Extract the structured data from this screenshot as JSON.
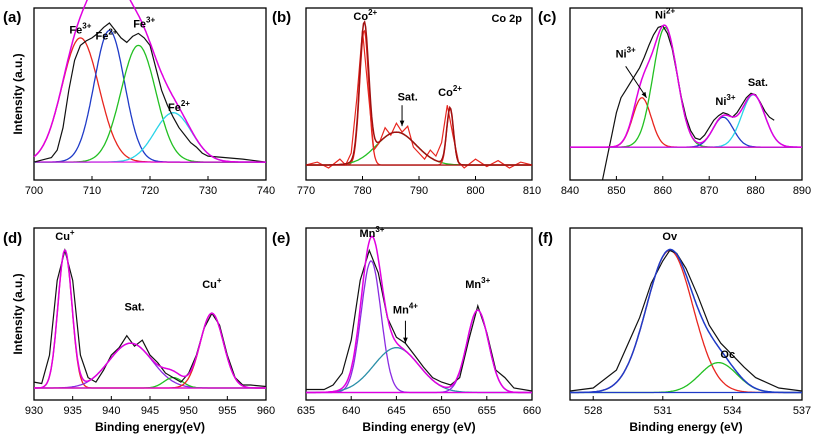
{
  "chart_data": [
    {
      "panel": "(a)",
      "type": "line",
      "title": "",
      "xlabel": "",
      "ylabel": "Intensity (a.u.)",
      "xlim": [
        700,
        740
      ],
      "ylim": [
        0,
        1.15
      ],
      "xticks": [
        "700",
        "710",
        "720",
        "730",
        "740"
      ],
      "baseline": 0.12,
      "raw": [
        [
          700,
          0.12
        ],
        [
          702,
          0.14
        ],
        [
          703,
          0.15
        ],
        [
          704,
          0.2
        ],
        [
          705,
          0.35
        ],
        [
          706,
          0.6
        ],
        [
          707,
          0.8
        ],
        [
          708,
          0.9
        ],
        [
          709,
          0.93
        ],
        [
          710,
          0.95
        ],
        [
          711,
          0.98
        ],
        [
          712,
          1.02
        ],
        [
          713,
          1.05
        ],
        [
          714,
          1.0
        ],
        [
          715,
          0.95
        ],
        [
          716,
          0.92
        ],
        [
          717,
          0.96
        ],
        [
          718,
          0.98
        ],
        [
          719,
          0.95
        ],
        [
          720,
          0.9
        ],
        [
          721,
          0.75
        ],
        [
          722,
          0.6
        ],
        [
          723,
          0.5
        ],
        [
          724,
          0.42
        ],
        [
          725,
          0.35
        ],
        [
          726,
          0.3
        ],
        [
          727,
          0.25
        ],
        [
          728,
          0.22
        ],
        [
          729,
          0.18
        ],
        [
          730,
          0.16
        ],
        [
          733,
          0.15
        ],
        [
          736,
          0.14
        ],
        [
          740,
          0.12
        ]
      ],
      "components": [
        {
          "name": "Fe3+",
          "color": "#e8261f",
          "center": 708,
          "amp": 0.83,
          "sigma": 3.2
        },
        {
          "name": "Fe2+",
          "color": "#1f3bc8",
          "center": 713,
          "amp": 0.88,
          "sigma": 2.6
        },
        {
          "name": "Fe3+",
          "color": "#22c022",
          "center": 718,
          "amp": 0.78,
          "sigma": 3.0
        },
        {
          "name": "Fe2+",
          "color": "#2ad4e8",
          "center": 724,
          "amp": 0.33,
          "sigma": 3.2
        }
      ],
      "envelope_color": "#e000e0",
      "annotations": [
        {
          "text": "Fe",
          "sup": "3+",
          "x": 708,
          "y": 0.98
        },
        {
          "text": "Fe",
          "sup": "2+",
          "x": 712.5,
          "y": 0.94
        },
        {
          "text": "Fe",
          "sup": "3+",
          "x": 719,
          "y": 1.02
        },
        {
          "text": "Fe",
          "sup": "2+",
          "x": 725,
          "y": 0.46
        }
      ]
    },
    {
      "panel": "(b)",
      "type": "line",
      "title": "Co 2p",
      "xlabel": "",
      "ylabel": "",
      "xlim": [
        770,
        810
      ],
      "ylim": [
        0,
        1.15
      ],
      "xticks": [
        "770",
        "780",
        "790",
        "800",
        "810"
      ],
      "baseline": 0.1,
      "raw": [
        [
          770,
          0.1
        ],
        [
          772,
          0.12
        ],
        [
          774,
          0.08
        ],
        [
          776,
          0.14
        ],
        [
          777,
          0.1
        ],
        [
          778,
          0.18
        ],
        [
          779,
          0.55
        ],
        [
          780,
          1.0
        ],
        [
          781,
          0.6
        ],
        [
          782,
          0.2
        ],
        [
          783,
          0.25
        ],
        [
          784,
          0.35
        ],
        [
          785,
          0.3
        ],
        [
          786,
          0.38
        ],
        [
          787,
          0.32
        ],
        [
          788,
          0.36
        ],
        [
          789,
          0.22
        ],
        [
          790,
          0.18
        ],
        [
          791,
          0.14
        ],
        [
          792,
          0.2
        ],
        [
          793,
          0.16
        ],
        [
          794,
          0.25
        ],
        [
          795,
          0.5
        ],
        [
          796,
          0.3
        ],
        [
          797,
          0.12
        ],
        [
          798,
          0.08
        ],
        [
          800,
          0.14
        ],
        [
          802,
          0.09
        ],
        [
          804,
          0.13
        ],
        [
          806,
          0.08
        ],
        [
          808,
          0.12
        ],
        [
          810,
          0.1
        ]
      ],
      "components": [
        {
          "name": "Co2+",
          "color": "#e8261f",
          "center": 780.3,
          "amp": 0.9,
          "sigma": 0.8
        },
        {
          "name": "Sat.",
          "color": "#22c022",
          "center": 786,
          "amp": 0.22,
          "sigma": 3.5
        },
        {
          "name": "Co2+",
          "color": "#e8261f",
          "center": 795.5,
          "amp": 0.38,
          "sigma": 0.6
        }
      ],
      "envelope_color": "#a01010",
      "annotations": [
        {
          "text": "Co",
          "sup": "2+",
          "x": 780.5,
          "y": 1.07
        },
        {
          "text": "Sat.",
          "sup": "",
          "x": 788,
          "y": 0.53
        },
        {
          "text": "Co",
          "sup": "2+",
          "x": 795.5,
          "y": 0.56
        }
      ],
      "arrows": [
        {
          "from": [
            787,
            0.5
          ],
          "to": [
            787,
            0.36
          ]
        }
      ]
    },
    {
      "panel": "(c)",
      "type": "line",
      "title": "",
      "xlabel": "",
      "ylabel": "",
      "xlim": [
        840,
        890
      ],
      "ylim": [
        0,
        1.15
      ],
      "xticks": [
        "840",
        "850",
        "860",
        "870",
        "880",
        "890"
      ],
      "baseline": 0.22,
      "raw": [
        [
          847,
          0.0
        ],
        [
          848,
          0.15
        ],
        [
          849,
          0.3
        ],
        [
          850,
          0.45
        ],
        [
          851,
          0.55
        ],
        [
          852,
          0.6
        ],
        [
          853,
          0.65
        ],
        [
          854,
          0.7
        ],
        [
          855,
          0.75
        ],
        [
          856,
          0.82
        ],
        [
          857,
          0.9
        ],
        [
          858,
          0.97
        ],
        [
          859,
          1.02
        ],
        [
          860,
          1.03
        ],
        [
          861,
          0.98
        ],
        [
          862,
          0.88
        ],
        [
          863,
          0.72
        ],
        [
          864,
          0.55
        ],
        [
          865,
          0.42
        ],
        [
          866,
          0.33
        ],
        [
          867,
          0.28
        ],
        [
          868,
          0.27
        ],
        [
          869,
          0.3
        ],
        [
          870,
          0.35
        ],
        [
          871,
          0.4
        ],
        [
          872,
          0.43
        ],
        [
          873,
          0.45
        ],
        [
          874,
          0.44
        ],
        [
          875,
          0.42
        ],
        [
          876,
          0.45
        ],
        [
          877,
          0.5
        ],
        [
          878,
          0.55
        ],
        [
          879,
          0.58
        ],
        [
          880,
          0.57
        ],
        [
          881,
          0.52
        ],
        [
          882,
          0.46
        ],
        [
          883,
          0.42
        ],
        [
          884,
          0.4
        ]
      ],
      "components": [
        {
          "name": "Ni3+",
          "color": "#e8261f",
          "center": 855.5,
          "amp": 0.33,
          "sigma": 2.0
        },
        {
          "name": "Ni2+",
          "color": "#22c022",
          "center": 860.5,
          "amp": 0.8,
          "sigma": 2.6
        },
        {
          "name": "Ni3+",
          "color": "#1f3bc8",
          "center": 873,
          "amp": 0.2,
          "sigma": 2.2
        },
        {
          "name": "Sat.",
          "color": "#2ad4e8",
          "center": 879.5,
          "amp": 0.35,
          "sigma": 2.5
        }
      ],
      "envelope_color": "#e000e0",
      "annotations": [
        {
          "text": "Ni",
          "sup": "2+",
          "x": 860.5,
          "y": 1.08
        },
        {
          "text": "Ni",
          "sup": "3+",
          "x": 852,
          "y": 0.82
        },
        {
          "text": "Ni",
          "sup": "3+",
          "x": 873.5,
          "y": 0.5
        },
        {
          "text": "Sat.",
          "sup": "",
          "x": 880.5,
          "y": 0.63
        }
      ],
      "arrows": [
        {
          "from": [
            852,
            0.76
          ],
          "to": [
            856.5,
            0.55
          ]
        }
      ]
    },
    {
      "panel": "(d)",
      "type": "line",
      "title": "",
      "xlabel": "Binding energy(eV)",
      "ylabel": "Intensity (a.u.)",
      "xlim": [
        930,
        960
      ],
      "ylim": [
        0,
        1.15
      ],
      "xticks": [
        "930",
        "935",
        "940",
        "945",
        "950",
        "955",
        "960"
      ],
      "baseline": 0.08,
      "raw": [
        [
          930,
          0.12
        ],
        [
          931,
          0.11
        ],
        [
          932,
          0.3
        ],
        [
          933,
          0.8
        ],
        [
          934,
          1.0
        ],
        [
          935,
          0.8
        ],
        [
          936,
          0.3
        ],
        [
          937,
          0.15
        ],
        [
          938,
          0.12
        ],
        [
          939,
          0.2
        ],
        [
          940,
          0.3
        ],
        [
          941,
          0.35
        ],
        [
          942,
          0.43
        ],
        [
          943,
          0.36
        ],
        [
          944,
          0.4
        ],
        [
          945,
          0.3
        ],
        [
          946,
          0.25
        ],
        [
          947,
          0.18
        ],
        [
          948,
          0.15
        ],
        [
          949,
          0.12
        ],
        [
          950,
          0.18
        ],
        [
          951,
          0.3
        ],
        [
          952,
          0.48
        ],
        [
          953,
          0.58
        ],
        [
          954,
          0.5
        ],
        [
          955,
          0.3
        ],
        [
          956,
          0.15
        ],
        [
          957,
          0.1
        ],
        [
          958,
          0.1
        ],
        [
          960,
          0.09
        ]
      ],
      "components": [
        {
          "name": "Cu+",
          "color": "#e8261f",
          "center": 934,
          "amp": 0.92,
          "sigma": 0.9
        },
        {
          "name": "Sat.",
          "color": "#8a2be2",
          "center": 942.5,
          "amp": 0.3,
          "sigma": 2.8
        },
        {
          "name": "Sat.",
          "color": "#22c022",
          "center": 948,
          "amp": 0.07,
          "sigma": 1.2
        },
        {
          "name": "Cu+",
          "color": "#e8261f",
          "center": 953,
          "amp": 0.5,
          "sigma": 1.5
        }
      ],
      "envelope_color": "#e000e0",
      "annotations": [
        {
          "text": "Cu",
          "sup": "+",
          "x": 934,
          "y": 1.07
        },
        {
          "text": "Sat.",
          "sup": "",
          "x": 943,
          "y": 0.6
        },
        {
          "text": "Cu",
          "sup": "+",
          "x": 953,
          "y": 0.75
        }
      ]
    },
    {
      "panel": "(e)",
      "type": "line",
      "title": "",
      "xlabel": "Binding energy (eV)",
      "ylabel": "",
      "xlim": [
        635,
        660
      ],
      "ylim": [
        0,
        1.15
      ],
      "xticks": [
        "635",
        "640",
        "645",
        "650",
        "655",
        "660"
      ],
      "baseline": 0.05,
      "raw": [
        [
          635,
          0.07
        ],
        [
          637,
          0.07
        ],
        [
          638,
          0.1
        ],
        [
          639,
          0.18
        ],
        [
          640,
          0.4
        ],
        [
          641,
          0.8
        ],
        [
          642,
          1.0
        ],
        [
          643,
          0.85
        ],
        [
          644,
          0.55
        ],
        [
          645,
          0.42
        ],
        [
          646,
          0.38
        ],
        [
          647,
          0.3
        ],
        [
          648,
          0.22
        ],
        [
          649,
          0.15
        ],
        [
          650,
          0.12
        ],
        [
          651,
          0.1
        ],
        [
          652,
          0.15
        ],
        [
          653,
          0.4
        ],
        [
          654,
          0.63
        ],
        [
          655,
          0.45
        ],
        [
          656,
          0.2
        ],
        [
          657,
          0.15
        ],
        [
          658,
          0.08
        ],
        [
          660,
          0.06
        ]
      ],
      "components": [
        {
          "name": "Mn3+",
          "color": "#8a2be2",
          "center": 642.2,
          "amp": 0.88,
          "sigma": 1.1
        },
        {
          "name": "Mn4+",
          "color": "#2a8fa8",
          "center": 645,
          "amp": 0.3,
          "sigma": 2.5
        },
        {
          "name": "Mn3+",
          "color": "#8a2be2",
          "center": 654,
          "amp": 0.55,
          "sigma": 1.2
        }
      ],
      "envelope_color": "#e000e0",
      "annotations": [
        {
          "text": "Mn",
          "sup": "3+",
          "x": 642.3,
          "y": 1.09
        },
        {
          "text": "Mn",
          "sup": "4+",
          "x": 646,
          "y": 0.58
        },
        {
          "text": "Mn",
          "sup": "3+",
          "x": 654,
          "y": 0.75
        }
      ],
      "arrows": [
        {
          "from": [
            646,
            0.53
          ],
          "to": [
            646,
            0.38
          ]
        }
      ]
    },
    {
      "panel": "(f)",
      "type": "line",
      "title": "",
      "xlabel": "Binding energy (eV)",
      "ylabel": "",
      "xlim": [
        527,
        537
      ],
      "ylim": [
        0,
        1.15
      ],
      "xticks": [
        "528",
        "531",
        "534",
        "537"
      ],
      "baseline": 0.05,
      "raw": [
        [
          527,
          0.06
        ],
        [
          528,
          0.08
        ],
        [
          529,
          0.2
        ],
        [
          530,
          0.55
        ],
        [
          530.5,
          0.78
        ],
        [
          531,
          0.93
        ],
        [
          531.3,
          1.0
        ],
        [
          531.6,
          0.98
        ],
        [
          532,
          0.88
        ],
        [
          532.5,
          0.7
        ],
        [
          533,
          0.5
        ],
        [
          533.5,
          0.38
        ],
        [
          534,
          0.3
        ],
        [
          534.5,
          0.22
        ],
        [
          535,
          0.15
        ],
        [
          536,
          0.08
        ],
        [
          537,
          0.06
        ]
      ],
      "components": [
        {
          "name": "Ov",
          "color": "#e8261f",
          "center": 531.3,
          "amp": 0.95,
          "sigma": 1.0
        },
        {
          "name": "Oc",
          "color": "#22c022",
          "center": 533.4,
          "amp": 0.2,
          "sigma": 0.8
        }
      ],
      "envelope_color": "#1f3bc8",
      "annotations": [
        {
          "text": "Ov",
          "sup": "",
          "x": 531.3,
          "y": 1.07
        },
        {
          "text": "Oc",
          "sup": "",
          "x": 533.8,
          "y": 0.28
        }
      ]
    }
  ]
}
